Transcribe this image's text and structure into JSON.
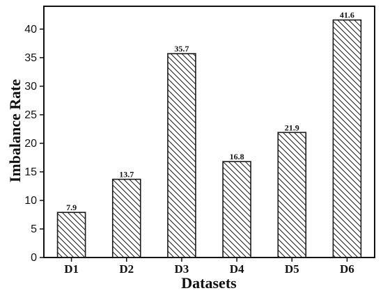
{
  "chart_data": {
    "type": "bar",
    "title": "",
    "xlabel": "Datasets",
    "ylabel": "Imbalance Rate",
    "categories": [
      "D1",
      "D2",
      "D3",
      "D4",
      "D5",
      "D6"
    ],
    "values": [
      7.9,
      13.7,
      35.7,
      16.8,
      21.9,
      41.6
    ],
    "data_labels": [
      "7.9",
      "13.7",
      "35.7",
      "16.8",
      "21.9",
      "41.6"
    ],
    "ylim": [
      0,
      44
    ],
    "yticks": [
      0,
      5,
      10,
      15,
      20,
      25,
      30,
      35,
      40
    ],
    "ytick_labels": [
      "0",
      "5",
      "10",
      "15",
      "20",
      "25",
      "30",
      "35",
      "40"
    ],
    "grid": false,
    "legend": "none",
    "bar_fill": "hatched diagonal lines",
    "colors": {
      "bar_edge": "#1a1a1a",
      "hatch": "#1a1a1a",
      "background": "#ffffff",
      "axis": "#111111"
    }
  }
}
